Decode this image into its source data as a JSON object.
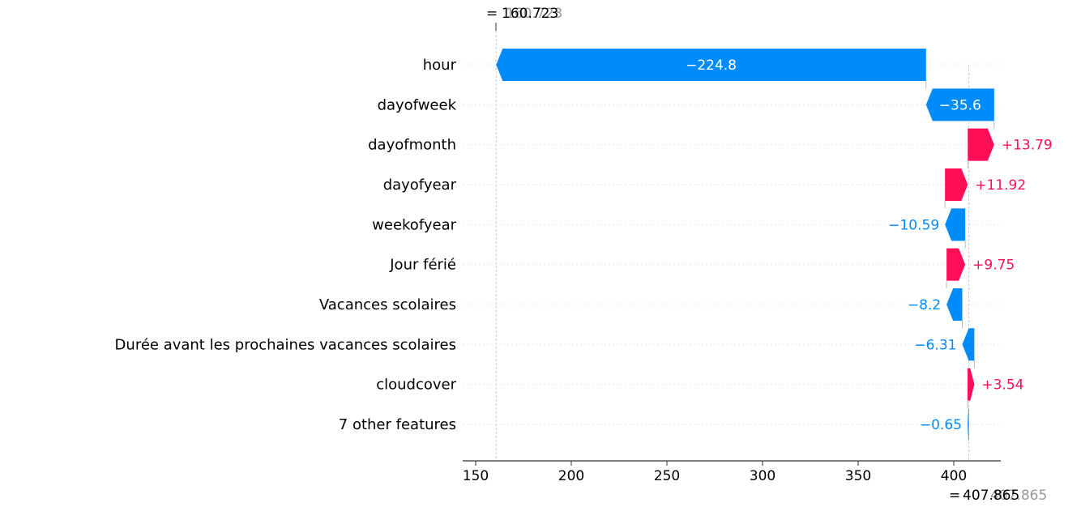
{
  "chart_data": {
    "type": "waterfall",
    "top_annotation": {
      "prefix": "= ",
      "value": "160.723",
      "ghost": "160.723"
    },
    "bottom_annotation": {
      "prefix": "= ",
      "value": "407.865",
      "ghost": "407.865"
    },
    "base_value": 407.865,
    "final_value": 160.723,
    "xlim": [
      145,
      420
    ],
    "xticks": [
      "150",
      "200",
      "250",
      "300",
      "350",
      "400"
    ],
    "features": [
      {
        "name": "hour",
        "value": -224.8,
        "label": "−224.8"
      },
      {
        "name": "dayofweek",
        "value": -35.6,
        "label": "−35.6"
      },
      {
        "name": "dayofmonth",
        "value": 13.79,
        "label": "+13.79"
      },
      {
        "name": "dayofyear",
        "value": 11.92,
        "label": "+11.92"
      },
      {
        "name": "weekofyear",
        "value": -10.59,
        "label": "−10.59"
      },
      {
        "name": "Jour férié",
        "value": 9.75,
        "label": "+9.75"
      },
      {
        "name": "Vacances scolaires",
        "value": -8.2,
        "label": "−8.2"
      },
      {
        "name": "Durée avant les prochaines vacances scolaires",
        "value": -6.31,
        "label": "−6.31"
      },
      {
        "name": "cloudcover",
        "value": 3.54,
        "label": "+3.54"
      },
      {
        "name": "7 other features",
        "value": -0.65,
        "label": "−0.65"
      }
    ],
    "colors": {
      "positive": "#ff0d57",
      "negative": "#008bfb",
      "axis": "#333333",
      "grid": "#cccccc",
      "ghost": "#999999"
    }
  }
}
